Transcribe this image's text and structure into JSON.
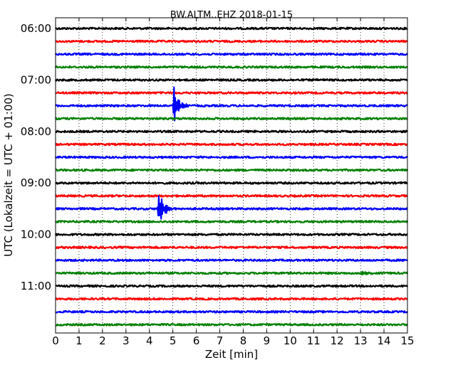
{
  "chart_data": {
    "type": "line",
    "title": "BW.ALTM..EHZ 2018-01-15",
    "xlabel": "Zeit  [min]",
    "ylabel": "UTC (Lokalzeit = UTC + 01:00)",
    "xlim": [
      0,
      15
    ],
    "x_ticks": [
      "0",
      "1",
      "2",
      "3",
      "4",
      "5",
      "6",
      "7",
      "8",
      "9",
      "10",
      "11",
      "12",
      "13",
      "14",
      "15"
    ],
    "y_ticks": [
      "06:00",
      "07:00",
      "08:00",
      "09:00",
      "10:00",
      "11:00"
    ],
    "grid": "vertical dotted",
    "trace_colors": [
      "#000000",
      "#ff0000",
      "#0000ff",
      "#008000"
    ],
    "trace_start_times": [
      "06:00",
      "06:15",
      "06:30",
      "06:45",
      "07:00",
      "07:15",
      "07:30",
      "07:45",
      "08:00",
      "08:15",
      "08:30",
      "08:45",
      "09:00",
      "09:15",
      "09:30",
      "09:45",
      "10:00",
      "10:15",
      "10:30",
      "10:45",
      "11:00",
      "11:15",
      "11:30",
      "11:45"
    ],
    "events": [
      {
        "trace_start": "07:30",
        "minute": 5.05,
        "color": "#0000ff",
        "relative_amplitude": 1.0
      },
      {
        "trace_start": "09:30",
        "minute": 4.4,
        "color": "#0000ff",
        "relative_amplitude": 1.0
      },
      {
        "trace_start": "10:45",
        "minute": 13.0,
        "color": "#008000",
        "relative_amplitude": 0.15
      }
    ]
  }
}
